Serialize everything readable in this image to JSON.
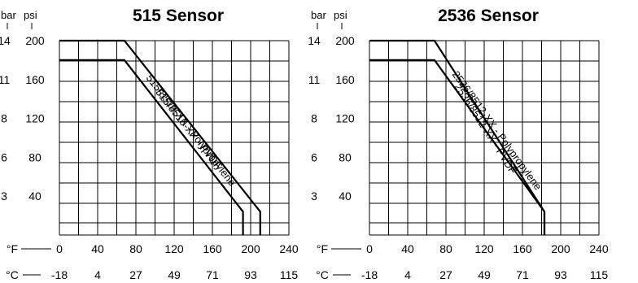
{
  "chart_data": [
    {
      "type": "line",
      "title": "515 Sensor",
      "y_units": [
        "bar",
        "psi"
      ],
      "x_units": [
        "°F",
        "°C"
      ],
      "grid": true,
      "xlim": [
        0,
        240
      ],
      "ylim": [
        0,
        200
      ],
      "x_ticks": [
        "0",
        "40",
        "80",
        "120",
        "160",
        "200",
        "240"
      ],
      "x2_ticks": [
        "-18",
        "4",
        "27",
        "49",
        "71",
        "93",
        "115"
      ],
      "y_ticks": [
        {
          "psi": "200",
          "bar": "14",
          "value": 200
        },
        {
          "psi": "160",
          "bar": "11",
          "value": 160
        },
        {
          "psi": "120",
          "bar": "8",
          "value": 120
        },
        {
          "psi": "80",
          "bar": "6",
          "value": 80
        },
        {
          "psi": "40",
          "bar": "3",
          "value": 40
        }
      ],
      "series": [
        {
          "name": "515/8510-XX - PVDF",
          "points": [
            [
              0,
              200
            ],
            [
              68,
              200
            ],
            [
              210,
              24
            ],
            [
              210,
              0
            ]
          ]
        },
        {
          "name": "515/8510-XX - Polypropylene",
          "points": [
            [
              0,
              180
            ],
            [
              68,
              180
            ],
            [
              192,
              24
            ],
            [
              192,
              0
            ]
          ]
        }
      ]
    },
    {
      "type": "line",
      "title": "2536 Sensor",
      "y_units": [
        "bar",
        "psi"
      ],
      "x_units": [
        "°F",
        "°C"
      ],
      "grid": true,
      "xlim": [
        0,
        240
      ],
      "ylim": [
        0,
        200
      ],
      "x_ticks": [
        "0",
        "40",
        "80",
        "120",
        "160",
        "200",
        "240"
      ],
      "x2_ticks": [
        "-18",
        "4",
        "27",
        "49",
        "71",
        "93",
        "115"
      ],
      "y_ticks": [
        {
          "psi": "200",
          "bar": "14",
          "value": 200
        },
        {
          "psi": "160",
          "bar": "11",
          "value": 160
        },
        {
          "psi": "120",
          "bar": "8",
          "value": 120
        },
        {
          "psi": "80",
          "bar": "6",
          "value": 80
        },
        {
          "psi": "40",
          "bar": "3",
          "value": 40
        }
      ],
      "series": [
        {
          "name": "2536/8512-XX - PVDF",
          "points": [
            [
              0,
              200
            ],
            [
              68,
              200
            ],
            [
              183,
              24
            ],
            [
              183,
              0
            ]
          ]
        },
        {
          "name": "2536/8512-XX - Polypropylene",
          "points": [
            [
              0,
              180
            ],
            [
              68,
              180
            ],
            [
              183,
              24
            ],
            [
              183,
              0
            ]
          ]
        }
      ]
    }
  ]
}
